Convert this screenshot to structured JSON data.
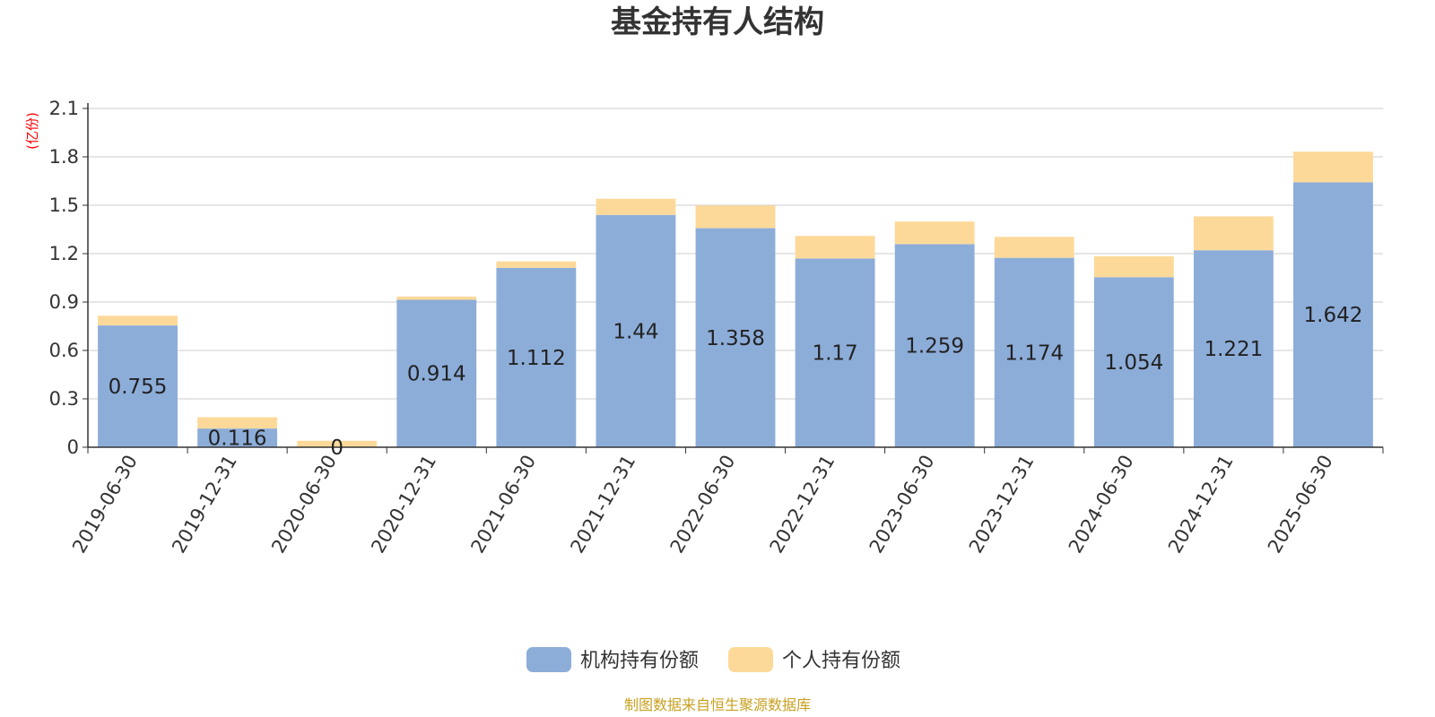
{
  "title": "基金持有人结构",
  "y_unit": "(亿份)",
  "source": "制图数据来自恒生聚源数据库",
  "colors": {
    "institution": "#8dadd9",
    "individual": "#fdd999",
    "axis": "#333333",
    "grid": "#cccccc"
  },
  "chart_data": {
    "type": "bar",
    "stacked": true,
    "title": "基金持有人结构",
    "ylabel": "(亿份)",
    "ylim": [
      0,
      2.1
    ],
    "yticks": [
      "0",
      "0.3",
      "0.6",
      "0.9",
      "1.2",
      "1.5",
      "1.8",
      "2.1"
    ],
    "grid": true,
    "legend_position": "bottom",
    "categories": [
      "2019-06-30",
      "2019-12-31",
      "2020-06-30",
      "2020-12-31",
      "2021-06-30",
      "2021-12-31",
      "2022-06-30",
      "2022-12-31",
      "2023-06-30",
      "2023-12-31",
      "2024-06-30",
      "2024-12-31",
      "2025-06-30"
    ],
    "series": [
      {
        "name": "机构持有份额",
        "values": [
          0.755,
          0.116,
          0,
          0.914,
          1.112,
          1.44,
          1.358,
          1.17,
          1.259,
          1.174,
          1.054,
          1.221,
          1.642
        ],
        "labels": [
          "0.755",
          "0.116",
          "0",
          "0.914",
          "1.112",
          "1.44",
          "1.358",
          "1.17",
          "1.259",
          "1.174",
          "1.054",
          "1.221",
          "1.642"
        ]
      },
      {
        "name": "个人持有份额",
        "values": [
          0.06,
          0.07,
          0.04,
          0.02,
          0.04,
          0.1,
          0.14,
          0.14,
          0.14,
          0.13,
          0.13,
          0.21,
          0.19
        ]
      }
    ]
  }
}
